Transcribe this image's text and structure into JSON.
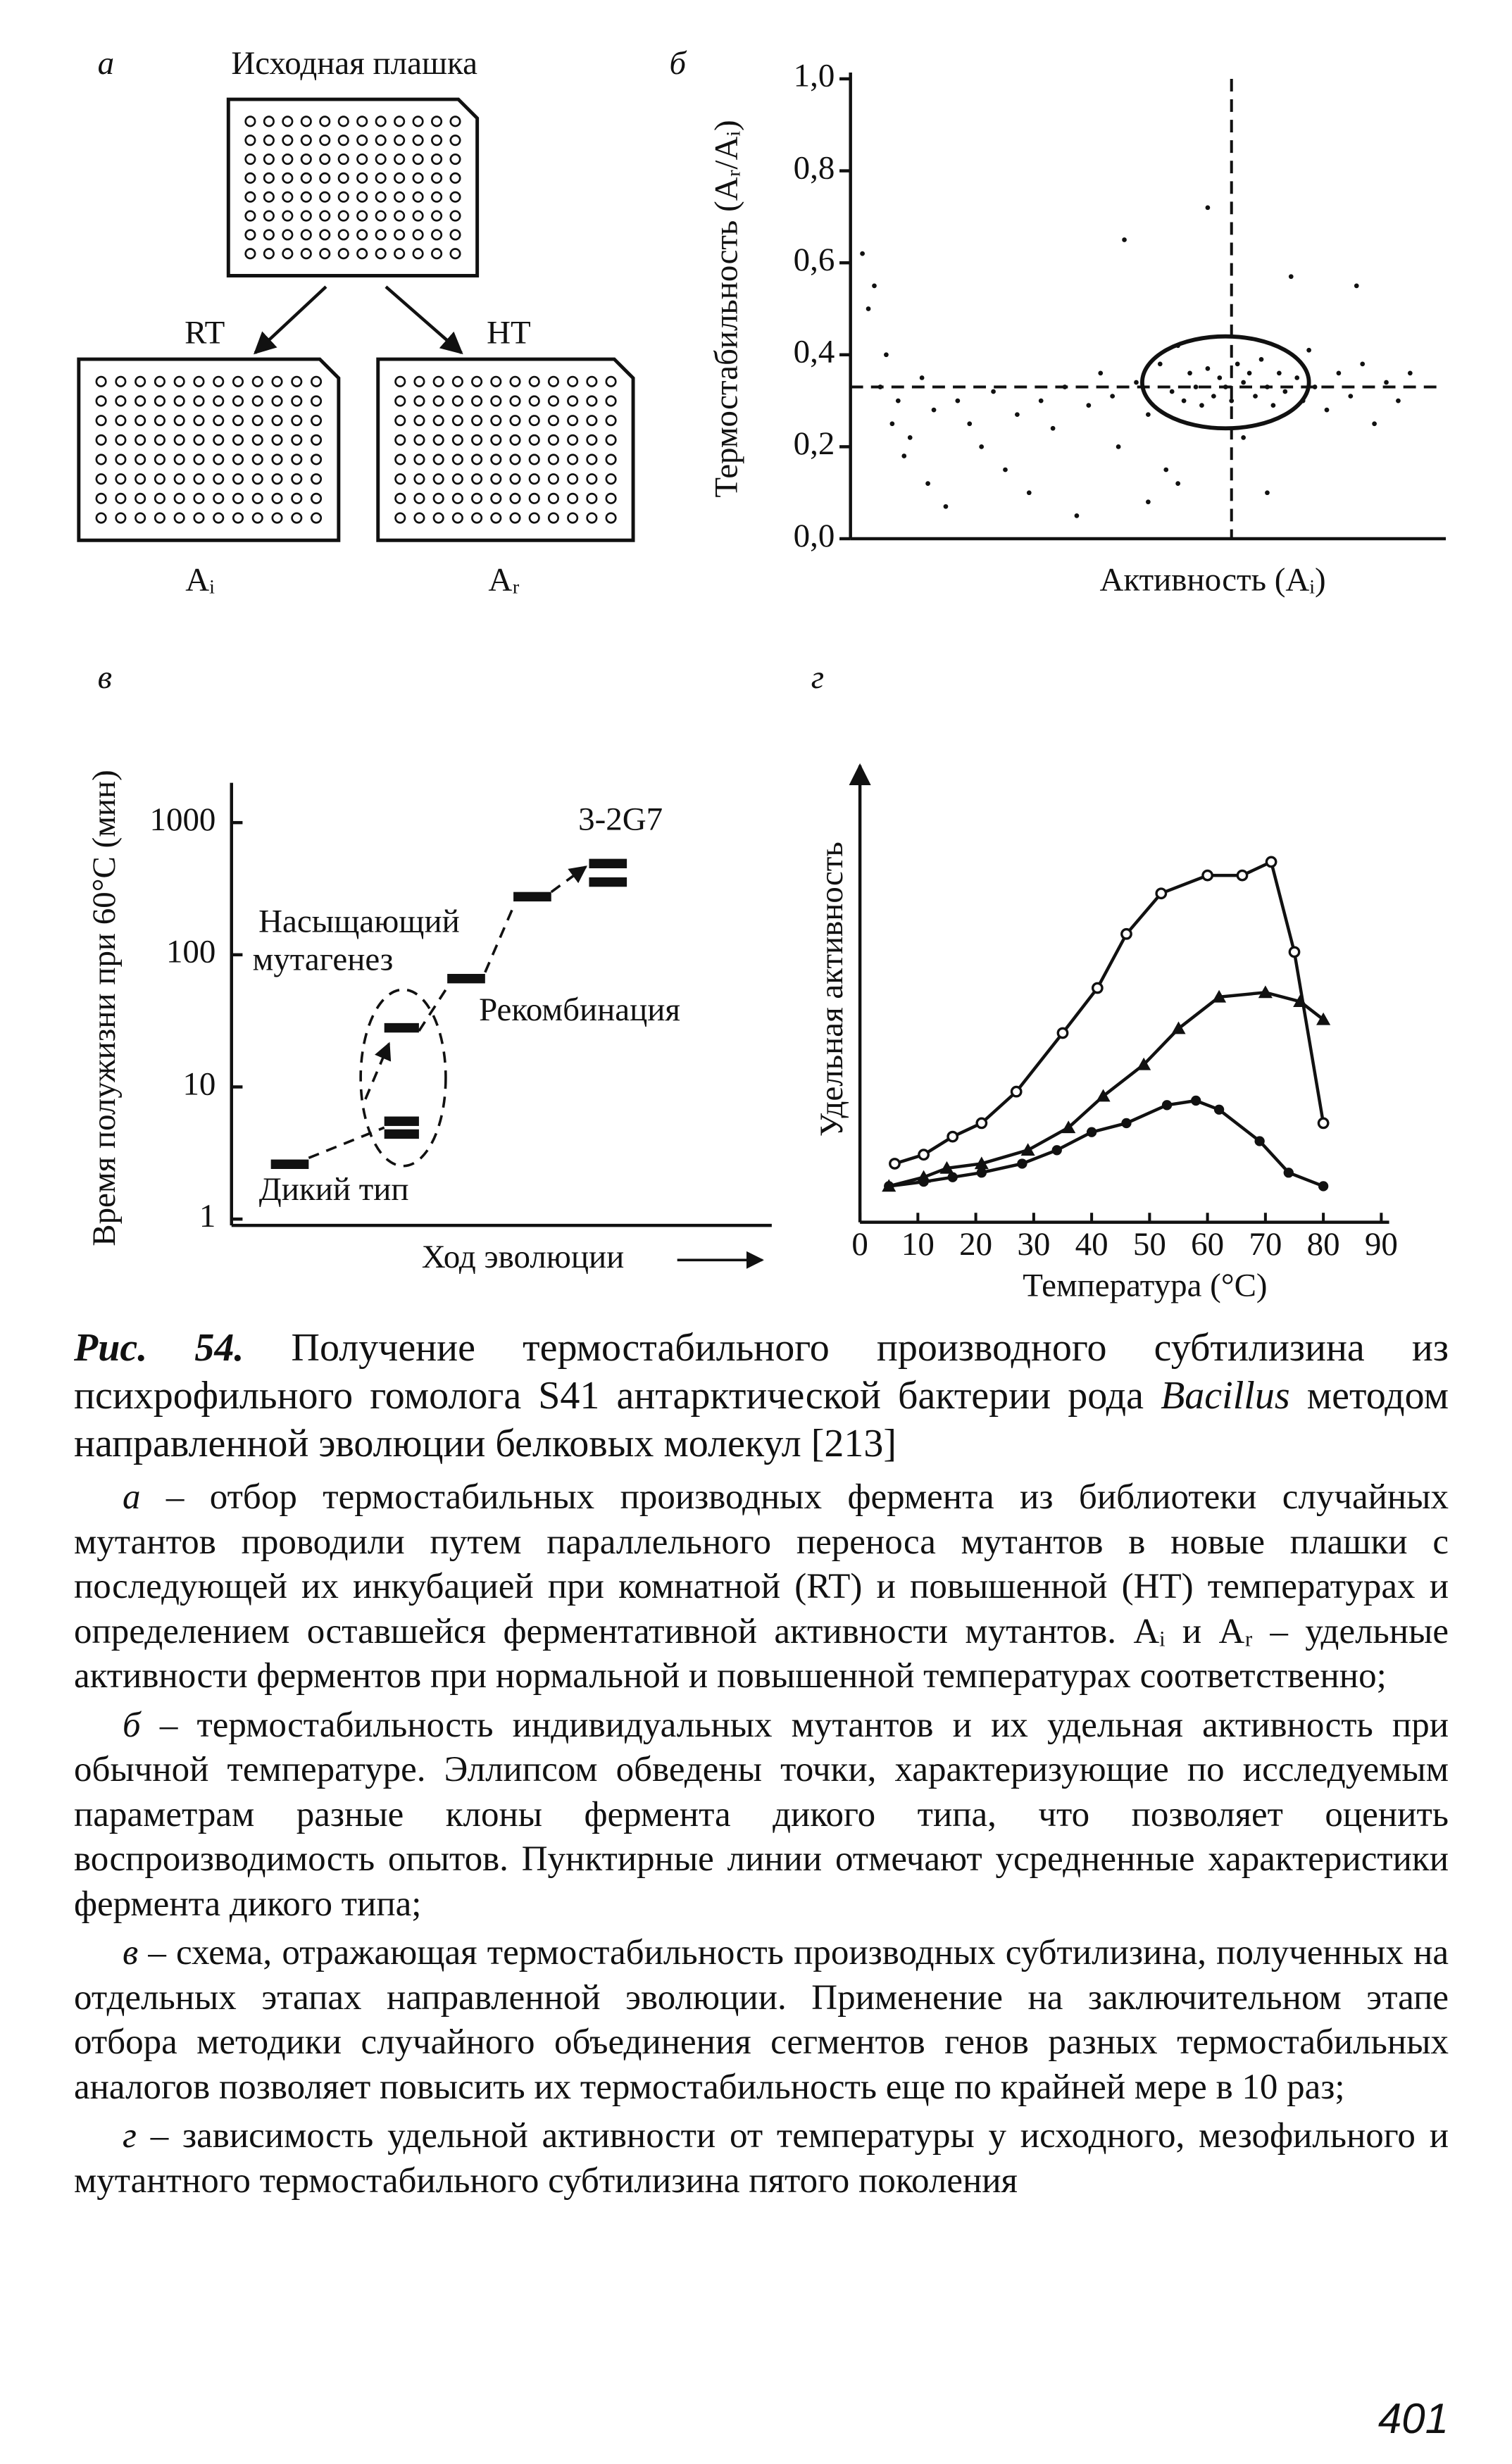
{
  "diagram": {
    "panel_label": "а",
    "title": "Исходная плашка",
    "left_arrow": "RT",
    "right_arrow": "HT",
    "left_plate": "Aᵢ",
    "right_plate": "Aᵣ"
  },
  "chart_data": [
    {
      "type": "scatter",
      "panel_label": "б",
      "ylabel": "Термостабильность (Aᵣ/Aᵢ)",
      "xlabel": "Активность (Aᵢ)",
      "ylim": [
        0,
        1
      ],
      "yticks": [
        {
          "value": 0,
          "label": "0,0"
        },
        {
          "value": 0.2,
          "label": "0,2"
        },
        {
          "value": 0.4,
          "label": "0,4"
        },
        {
          "value": 0.6,
          "label": "0,6"
        },
        {
          "value": 0.8,
          "label": "0,8"
        },
        {
          "value": 1,
          "label": "1,0"
        }
      ],
      "xlim": [
        0,
        100
      ],
      "x": [
        2,
        4,
        3,
        6,
        5,
        8,
        7,
        10,
        9,
        12,
        14,
        13,
        16,
        18,
        20,
        22,
        24,
        26,
        28,
        30,
        32,
        34,
        36,
        38,
        40,
        42,
        44,
        45,
        46,
        48,
        50,
        52,
        53,
        54,
        55,
        56,
        57,
        58,
        59,
        60,
        61,
        62,
        63,
        64,
        65,
        66,
        67,
        68,
        69,
        70,
        71,
        72,
        73,
        74,
        75,
        76,
        77,
        78,
        80,
        82,
        84,
        86,
        88,
        90,
        92,
        94,
        60,
        55,
        50,
        70,
        66,
        85
      ],
      "values": [
        0.62,
        0.55,
        0.5,
        0.4,
        0.33,
        0.3,
        0.25,
        0.22,
        0.18,
        0.35,
        0.28,
        0.12,
        0.07,
        0.3,
        0.25,
        0.2,
        0.32,
        0.15,
        0.27,
        0.1,
        0.3,
        0.24,
        0.33,
        0.05,
        0.29,
        0.36,
        0.31,
        0.2,
        0.65,
        0.34,
        0.27,
        0.38,
        0.15,
        0.32,
        0.42,
        0.3,
        0.36,
        0.33,
        0.29,
        0.37,
        0.31,
        0.35,
        0.33,
        0.3,
        0.38,
        0.34,
        0.36,
        0.31,
        0.39,
        0.33,
        0.29,
        0.36,
        0.32,
        0.57,
        0.35,
        0.3,
        0.41,
        0.33,
        0.28,
        0.36,
        0.31,
        0.38,
        0.25,
        0.34,
        0.3,
        0.36,
        0.72,
        0.12,
        0.08,
        0.1,
        0.22,
        0.55
      ],
      "reference_lines": {
        "y": 0.33,
        "x": 64
      },
      "ellipse": {
        "cx": 63,
        "cy": 0.34,
        "rx": 14,
        "ry": 0.1
      }
    },
    {
      "type": "levels",
      "panel_label": "в",
      "ylabel": "Время полужизни при 60°С (мин)",
      "xlabel": "Ход эволюции",
      "log_scale": true,
      "ylim": [
        1,
        2000
      ],
      "yticks": [
        1,
        10,
        100,
        1000
      ],
      "stages": [
        [
          2.6
        ],
        [
          28,
          5.5,
          4.4
        ],
        [
          66
        ],
        [
          275
        ],
        [
          490,
          355
        ]
      ],
      "annotations": {
        "wild": "Дикий тип",
        "mutagenesis_1": "Насыщающий",
        "mutagenesis_2": "мутагенез",
        "recombination": "Рекомбинация",
        "final": "3-2G7"
      }
    },
    {
      "type": "line",
      "panel_label": "г",
      "ylabel": "Удельная активность",
      "xlabel": "Температура (°С)",
      "xlim": [
        0,
        90
      ],
      "xticks": [
        0,
        10,
        20,
        30,
        40,
        50,
        60,
        70,
        80,
        90
      ],
      "ylim": [
        0,
        1
      ],
      "series": [
        {
          "marker": "circle",
          "x": [
            6,
            11,
            16,
            21,
            27,
            35,
            41,
            46,
            52,
            60,
            66,
            71,
            75,
            80
          ],
          "values": [
            0.13,
            0.15,
            0.19,
            0.22,
            0.29,
            0.42,
            0.52,
            0.64,
            0.73,
            0.77,
            0.77,
            0.8,
            0.6,
            0.22
          ]
        },
        {
          "marker": "triangle",
          "x": [
            5,
            11,
            15,
            21,
            29,
            36,
            42,
            49,
            55,
            62,
            70,
            76,
            80
          ],
          "values": [
            0.08,
            0.1,
            0.12,
            0.13,
            0.16,
            0.21,
            0.28,
            0.35,
            0.43,
            0.5,
            0.51,
            0.49,
            0.45
          ]
        },
        {
          "marker": "dot",
          "x": [
            5,
            11,
            16,
            21,
            28,
            34,
            40,
            46,
            53,
            58,
            62,
            69,
            74,
            80
          ],
          "values": [
            0.08,
            0.09,
            0.1,
            0.11,
            0.13,
            0.16,
            0.2,
            0.22,
            0.26,
            0.27,
            0.25,
            0.18,
            0.11,
            0.08
          ]
        }
      ]
    }
  ],
  "caption": {
    "label": "Рис. 54.",
    "text_before": "Получение термостабильного производного субтилизина из психрофильного гомолога S41 антарктической бактерии рода",
    "genus": "Bacillus",
    "text_after": "методом направленной эволюции белковых молекул [213]",
    "parts": [
      {
        "letter": "а",
        "text": "– отбор термостабильных производных фермента из библиотеки случайных мутантов проводили путем параллельного переноса мутантов в новые плашки с последующей их инкубацией при комнатной (RT) и повышенной (HT) температурах и определением оставшейся ферментативной активности мутантов. Aᵢ и Aᵣ – удельные активности ферментов при нормальной и повышенной температурах соответственно;"
      },
      {
        "letter": "б",
        "text": "– термостабильность индивидуальных мутантов и их удельная активность при обычной температуре. Эллипсом обведены точки, характеризующие по исследуемым параметрам разные клоны фермента дикого типа, что позволяет оценить воспроизводимость опытов. Пунктирные линии отмечают усредненные характеристики фермента дикого типа;"
      },
      {
        "letter": "в",
        "text": "– схема, отражающая термостабильность производных субтилизина, полученных на отдельных этапах направленной эволюции. Применение на заключительном этапе отбора методики случайного объединения сегментов генов разных термостабильных аналогов позволяет повысить их термостабильность еще по крайней мере в 10 раз;"
      },
      {
        "letter": "г",
        "text": "– зависимость удельной активности от температуры у исходного, мезофильного и мутантного термостабильного субтилизина пятого поколения"
      }
    ]
  },
  "page_number": "401"
}
